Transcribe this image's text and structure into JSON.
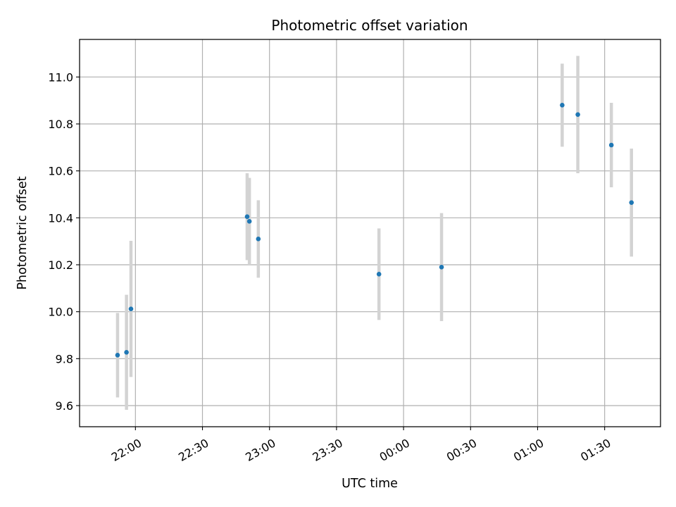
{
  "chart_data": {
    "type": "scatter",
    "title": "Photometric offset variation",
    "xlabel": "UTC time",
    "ylabel": "Photometric offset",
    "x_axis": "time",
    "x_tick_labels": [
      "22:00",
      "22:30",
      "23:00",
      "23:30",
      "00:00",
      "00:30",
      "01:00",
      "01:30"
    ],
    "y_ticks": [
      9.6,
      9.8,
      10.0,
      10.2,
      10.4,
      10.6,
      10.8,
      11.0
    ],
    "y_tick_labels": [
      "9.6",
      "9.8",
      "10.0",
      "10.2",
      "10.4",
      "10.6",
      "10.8",
      "11.0"
    ],
    "ylim": [
      9.51,
      11.16
    ],
    "xlim": [
      "21:35",
      "01:55"
    ],
    "grid": true,
    "point_color": "#1f77b4",
    "errorbar_color": "#d3d3d3",
    "points": [
      {
        "time": "21:52",
        "y": 9.815,
        "yerr": 0.18
      },
      {
        "time": "21:56",
        "y": 9.827,
        "yerr": 0.245
      },
      {
        "time": "21:58",
        "y": 10.012,
        "yerr": 0.29
      },
      {
        "time": "22:50",
        "y": 10.405,
        "yerr": 0.185
      },
      {
        "time": "22:51",
        "y": 10.385,
        "yerr": 0.185
      },
      {
        "time": "22:55",
        "y": 10.31,
        "yerr": 0.165
      },
      {
        "time": "23:49",
        "y": 10.16,
        "yerr": 0.195
      },
      {
        "time": "00:17",
        "y": 10.19,
        "yerr": 0.23
      },
      {
        "time": "01:11",
        "y": 10.88,
        "yerr": 0.177
      },
      {
        "time": "01:18",
        "y": 10.84,
        "yerr": 0.25
      },
      {
        "time": "01:33",
        "y": 10.71,
        "yerr": 0.18
      },
      {
        "time": "01:42",
        "y": 10.465,
        "yerr": 0.23
      }
    ]
  }
}
